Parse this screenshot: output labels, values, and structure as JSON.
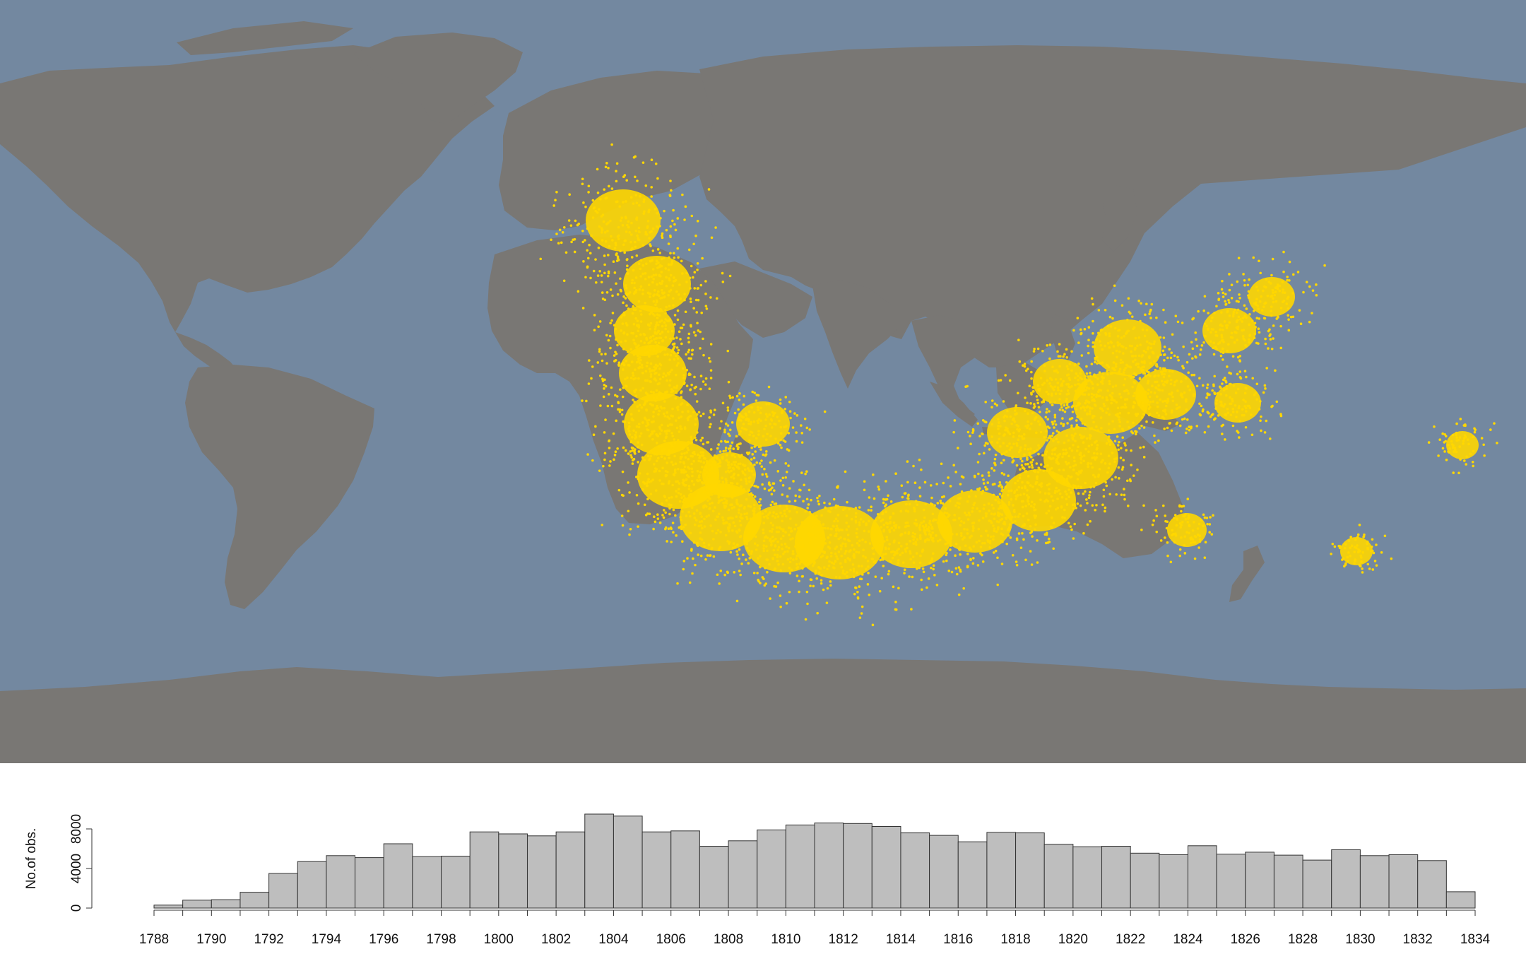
{
  "colors": {
    "ocean": "#7388a0",
    "land": "#797774",
    "observations": "#ffd700",
    "bar_fill": "#bebebe",
    "bar_stroke": "#333333",
    "axis": "#333333",
    "text": "#111111"
  },
  "chart_data": [
    {
      "type": "scatter",
      "projection": "equirectangular world map",
      "title": "",
      "xlabel": "",
      "ylabel": "",
      "xlim": [
        -180,
        180
      ],
      "ylim": [
        -90,
        90
      ],
      "series": [
        {
          "regions": [
            {
              "lon": -33,
              "lat": 38,
              "weight": 7
            },
            {
              "lon": -25,
              "lat": 23,
              "weight": 6
            },
            {
              "lon": -28,
              "lat": 12,
              "weight": 5
            },
            {
              "lon": -26,
              "lat": 2,
              "weight": 6
            },
            {
              "lon": -24,
              "lat": -10,
              "weight": 7
            },
            {
              "lon": -20,
              "lat": -22,
              "weight": 8
            },
            {
              "lon": -10,
              "lat": -32,
              "weight": 8
            },
            {
              "lon": 5,
              "lat": -37,
              "weight": 8
            },
            {
              "lon": 18,
              "lat": -38,
              "weight": 9
            },
            {
              "lon": 35,
              "lat": -36,
              "weight": 8
            },
            {
              "lon": 50,
              "lat": -33,
              "weight": 7
            },
            {
              "lon": 65,
              "lat": -28,
              "weight": 7
            },
            {
              "lon": 75,
              "lat": -18,
              "weight": 7
            },
            {
              "lon": 82,
              "lat": -5,
              "weight": 7
            },
            {
              "lon": 86,
              "lat": 8,
              "weight": 6
            },
            {
              "lon": 95,
              "lat": -3,
              "weight": 5
            },
            {
              "lon": 60,
              "lat": -12,
              "weight": 5
            },
            {
              "lon": 70,
              "lat": 0,
              "weight": 4
            },
            {
              "lon": 110,
              "lat": 12,
              "weight": 4
            },
            {
              "lon": 120,
              "lat": 20,
              "weight": 3
            },
            {
              "lon": 112,
              "lat": -5,
              "weight": 3
            },
            {
              "lon": 0,
              "lat": -10,
              "weight": 4
            },
            {
              "lon": -8,
              "lat": -22,
              "weight": 4
            },
            {
              "lon": 100,
              "lat": -35,
              "weight": 2
            },
            {
              "lon": 140,
              "lat": -40,
              "weight": 1
            },
            {
              "lon": 165,
              "lat": -15,
              "weight": 1
            }
          ]
        }
      ]
    },
    {
      "type": "bar",
      "title": "",
      "xlabel": "",
      "ylabel": "No.of obs.",
      "ylim": [
        0,
        10000
      ],
      "yticks": [
        0,
        4000,
        8000
      ],
      "ytick_labels": [
        "0",
        "4000",
        "8000"
      ],
      "xticks": [
        "1788",
        "1790",
        "1792",
        "1794",
        "1796",
        "1798",
        "1800",
        "1802",
        "1804",
        "1806",
        "1808",
        "1810",
        "1812",
        "1814",
        "1816",
        "1818",
        "1820",
        "1822",
        "1824",
        "1826",
        "1828",
        "1830",
        "1832",
        "1834"
      ],
      "x": [
        1788,
        1789,
        1790,
        1791,
        1792,
        1793,
        1794,
        1795,
        1796,
        1797,
        1798,
        1799,
        1800,
        1801,
        1802,
        1803,
        1804,
        1805,
        1806,
        1807,
        1808,
        1809,
        1810,
        1811,
        1812,
        1813,
        1814,
        1815,
        1816,
        1817,
        1818,
        1819,
        1820,
        1821,
        1822,
        1823,
        1824,
        1825,
        1826,
        1827,
        1828,
        1829,
        1830,
        1831,
        1832,
        1833
      ],
      "values": [
        300,
        800,
        850,
        1600,
        3500,
        4700,
        5300,
        5100,
        6500,
        5200,
        5250,
        7700,
        7500,
        7300,
        7700,
        9500,
        9300,
        7700,
        7800,
        6250,
        6800,
        7900,
        8400,
        8600,
        8550,
        8250,
        7600,
        7350,
        6700,
        7650,
        7600,
        6450,
        6200,
        6250,
        5550,
        5400,
        6300,
        5450,
        5650,
        5350,
        4850,
        5900,
        5300,
        5400,
        4800,
        1650
      ]
    }
  ]
}
